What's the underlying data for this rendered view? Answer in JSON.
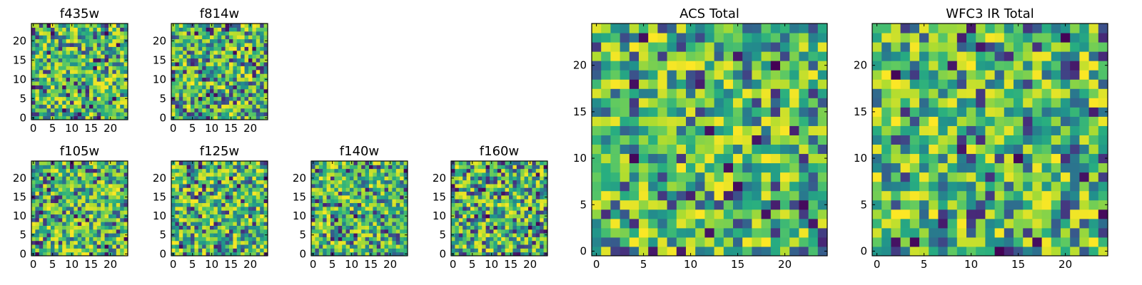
{
  "chart_data": [
    {
      "type": "heatmap",
      "title": "f435w",
      "seed": 11,
      "grid_size": 25,
      "colormap": "viridis",
      "xlim": [
        -0.5,
        24.5
      ],
      "ylim": [
        -0.5,
        24.5
      ],
      "xticks": [
        0,
        5,
        10,
        15,
        20
      ],
      "yticks": [
        0,
        5,
        10,
        15,
        20
      ]
    },
    {
      "type": "heatmap",
      "title": "f814w",
      "seed": 23,
      "grid_size": 25,
      "colormap": "viridis",
      "xlim": [
        -0.5,
        24.5
      ],
      "ylim": [
        -0.5,
        24.5
      ],
      "xticks": [
        0,
        5,
        10,
        15,
        20
      ],
      "yticks": [
        0,
        5,
        10,
        15,
        20
      ]
    },
    {
      "type": "heatmap",
      "title": "f105w",
      "seed": 37,
      "grid_size": 25,
      "colormap": "viridis",
      "xlim": [
        -0.5,
        24.5
      ],
      "ylim": [
        -0.5,
        24.5
      ],
      "xticks": [
        0,
        5,
        10,
        15,
        20
      ],
      "yticks": [
        0,
        5,
        10,
        15,
        20
      ]
    },
    {
      "type": "heatmap",
      "title": "f125w",
      "seed": 41,
      "grid_size": 25,
      "colormap": "viridis",
      "xlim": [
        -0.5,
        24.5
      ],
      "ylim": [
        -0.5,
        24.5
      ],
      "xticks": [
        0,
        5,
        10,
        15,
        20
      ],
      "yticks": [
        0,
        5,
        10,
        15,
        20
      ]
    },
    {
      "type": "heatmap",
      "title": "f140w",
      "seed": 53,
      "grid_size": 25,
      "colormap": "viridis",
      "xlim": [
        -0.5,
        24.5
      ],
      "ylim": [
        -0.5,
        24.5
      ],
      "xticks": [
        0,
        5,
        10,
        15,
        20
      ],
      "yticks": [
        0,
        5,
        10,
        15,
        20
      ]
    },
    {
      "type": "heatmap",
      "title": "f160w",
      "seed": 67,
      "grid_size": 25,
      "colormap": "viridis",
      "xlim": [
        -0.5,
        24.5
      ],
      "ylim": [
        -0.5,
        24.5
      ],
      "xticks": [
        0,
        5,
        10,
        15,
        20
      ],
      "yticks": [
        0,
        5,
        10,
        15,
        20
      ]
    },
    {
      "type": "heatmap",
      "title": "ACS Total",
      "seed": 79,
      "grid_size": 25,
      "colormap": "viridis",
      "xlim": [
        -0.5,
        24.5
      ],
      "ylim": [
        -0.5,
        24.5
      ],
      "xticks": [
        0,
        5,
        10,
        15,
        20
      ],
      "yticks": [
        0,
        5,
        10,
        15,
        20
      ]
    },
    {
      "type": "heatmap",
      "title": "WFC3 IR Total",
      "seed": 97,
      "grid_size": 25,
      "colormap": "viridis",
      "xlim": [
        -0.5,
        24.5
      ],
      "ylim": [
        -0.5,
        24.5
      ],
      "xticks": [
        0,
        5,
        10,
        15,
        20
      ],
      "yticks": [
        0,
        5,
        10,
        15,
        20
      ]
    }
  ],
  "colors": {
    "viridis": [
      "#440154",
      "#472d7b",
      "#3b528b",
      "#2c728e",
      "#21918c",
      "#28ae80",
      "#5ec962",
      "#addc30",
      "#fde725"
    ],
    "frame": "#000000",
    "background": "#ffffff"
  }
}
